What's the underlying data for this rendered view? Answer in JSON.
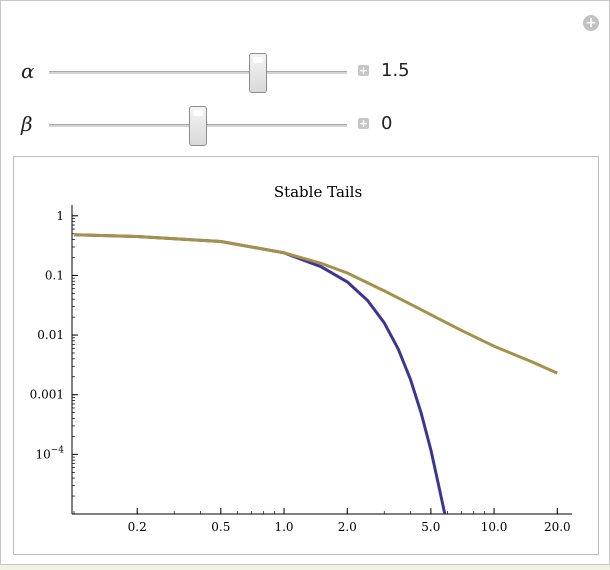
{
  "controls": {
    "alpha": {
      "label": "α",
      "value": "1.5",
      "fraction": 0.7
    },
    "beta": {
      "label": "β",
      "value": "0",
      "fraction": 0.5
    }
  },
  "chart_data": {
    "type": "line",
    "title": "Stable Tails",
    "xscale": "log",
    "yscale": "log",
    "xlim": [
      0.1,
      22
    ],
    "ylim": [
      1e-05,
      1.3
    ],
    "xticks": [
      "0.2",
      "0.5",
      "1.0",
      "2.0",
      "5.0",
      "10.0",
      "20.0"
    ],
    "xtick_values": [
      0.2,
      0.5,
      1.0,
      2.0,
      5.0,
      10.0,
      20.0
    ],
    "yticks": [
      "1",
      "0.1",
      "0.01",
      "0.001",
      "10^-4"
    ],
    "ytick_values": [
      1,
      0.1,
      0.01,
      0.001,
      0.0001
    ],
    "series": [
      {
        "color": "#3b3694",
        "x": [
          0.1,
          0.2,
          0.5,
          1.0,
          1.5,
          2.0,
          2.5,
          3.0,
          3.5,
          4.0,
          4.5,
          5.0,
          5.5,
          5.9
        ],
        "y": [
          0.48,
          0.45,
          0.37,
          0.24,
          0.14,
          0.078,
          0.038,
          0.016,
          0.0058,
          0.0018,
          0.00049,
          0.00012,
          2.6e-05,
          8.2e-06
        ]
      },
      {
        "color": "#a5914a",
        "x": [
          0.1,
          0.2,
          0.5,
          1.0,
          1.5,
          2.0,
          3.0,
          4.0,
          5.0,
          7.0,
          10.0,
          15.0,
          20.0
        ],
        "y": [
          0.48,
          0.45,
          0.37,
          0.24,
          0.16,
          0.11,
          0.055,
          0.033,
          0.022,
          0.012,
          0.0065,
          0.0036,
          0.0023
        ]
      }
    ]
  }
}
